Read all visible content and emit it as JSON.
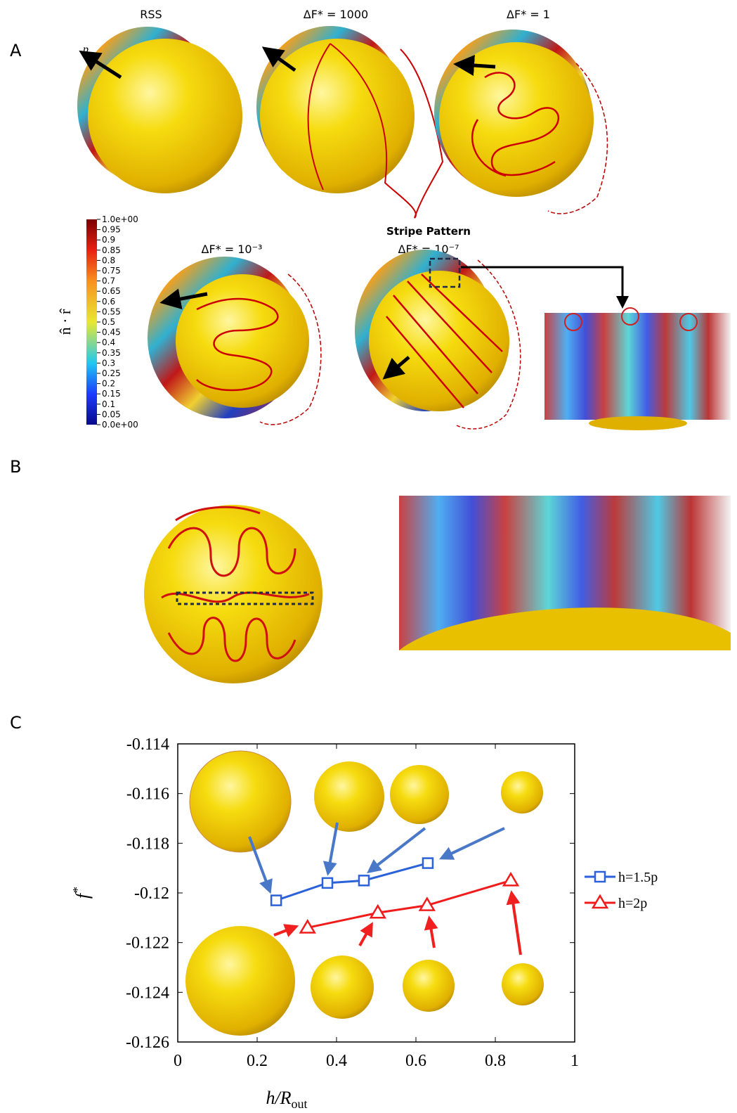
{
  "panels": {
    "A": {
      "label": "A",
      "titles": [
        "RSS",
        "ΔF* = 1000",
        "ΔF* = 1",
        "ΔF* = 10⁻³",
        "Stripe Pattern",
        "ΔF* = 10⁻⁷"
      ],
      "vector_label": "p⃗",
      "colorbar": {
        "label": "n̂ · r̂",
        "lim": [
          0,
          1
        ],
        "ticks": [
          {
            "value": 1,
            "label": "1.0e+00"
          },
          0.95,
          0.9,
          0.85,
          0.8,
          0.75,
          0.7,
          0.65,
          0.6,
          0.55,
          0.5,
          0.45,
          0.4,
          0.35,
          0.3,
          0.25,
          0.2,
          0.15,
          0.1,
          0.05,
          {
            "value": 0,
            "label": "0.0e+00"
          }
        ]
      }
    },
    "B": {
      "label": "B"
    },
    "C": {
      "label": "C"
    }
  },
  "chart_data": {
    "type": "line",
    "x_label": {
      "main": "h/R",
      "sub": "out"
    },
    "y_label": {
      "main": "f",
      "sup": "*"
    },
    "xlim": [
      0,
      1
    ],
    "xticks": [
      0,
      0.2,
      0.4,
      0.6,
      0.8,
      1
    ],
    "ylim": [
      -0.126,
      -0.114
    ],
    "yticks": [
      -0.126,
      -0.124,
      -0.122,
      -0.12,
      -0.118,
      -0.116,
      -0.114
    ],
    "legend": "right",
    "series": [
      {
        "name": "h=1.5p",
        "color": "#2b62d9",
        "marker": "square",
        "x": [
          0.248,
          0.377,
          0.469,
          0.63
        ],
        "values": [
          -0.1203,
          -0.1196,
          -0.1195,
          -0.1188
        ]
      },
      {
        "name": "h=2p",
        "color": "#f01c1c",
        "marker": "triangle",
        "x": [
          0.327,
          0.504,
          0.628,
          0.839
        ],
        "values": [
          -0.1214,
          -0.1208,
          -0.1205,
          -0.1195
        ]
      }
    ]
  }
}
